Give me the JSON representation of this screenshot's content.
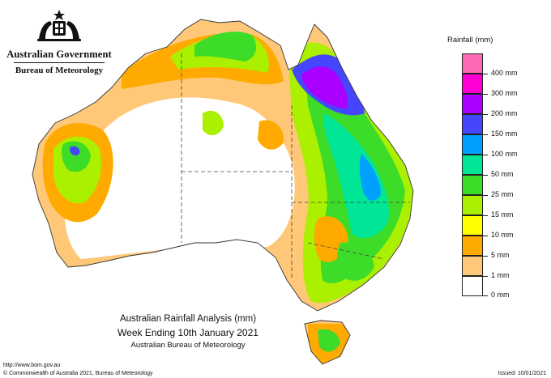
{
  "branding": {
    "crest_icon": "coat-of-arms-icon",
    "government": "Australian Government",
    "agency": "Bureau of Meteorology"
  },
  "legend": {
    "title": "Rainfall (mm)",
    "items": [
      {
        "label": "",
        "color": "#ff69b4"
      },
      {
        "label": "400 mm",
        "color": "#ff00d4"
      },
      {
        "label": "300 mm",
        "color": "#aa00ff"
      },
      {
        "label": "200 mm",
        "color": "#4646ff"
      },
      {
        "label": "150 mm",
        "color": "#00a0ff"
      },
      {
        "label": "100 mm",
        "color": "#00e696"
      },
      {
        "label": "50 mm",
        "color": "#3cdc28"
      },
      {
        "label": "25 mm",
        "color": "#aaf000"
      },
      {
        "label": "15 mm",
        "color": "#ffff00"
      },
      {
        "label": "10 mm",
        "color": "#ffaa00"
      },
      {
        "label": "5 mm",
        "color": "#ffc878"
      },
      {
        "label": "1 mm",
        "color": "#ffffff"
      },
      {
        "label": "0 mm",
        "color": ""
      }
    ]
  },
  "caption": {
    "line1": "Australian Rainfall Analysis (mm)",
    "line2": "Week Ending 10th January 2021",
    "line3": "Australian Bureau of Meteorology"
  },
  "footer": {
    "url": "http://www.bom.gov.au",
    "copyright": "© Commonwealth of Australia 2021, Bureau of Meteorology",
    "issued": "Issued: 10/01/2021"
  }
}
